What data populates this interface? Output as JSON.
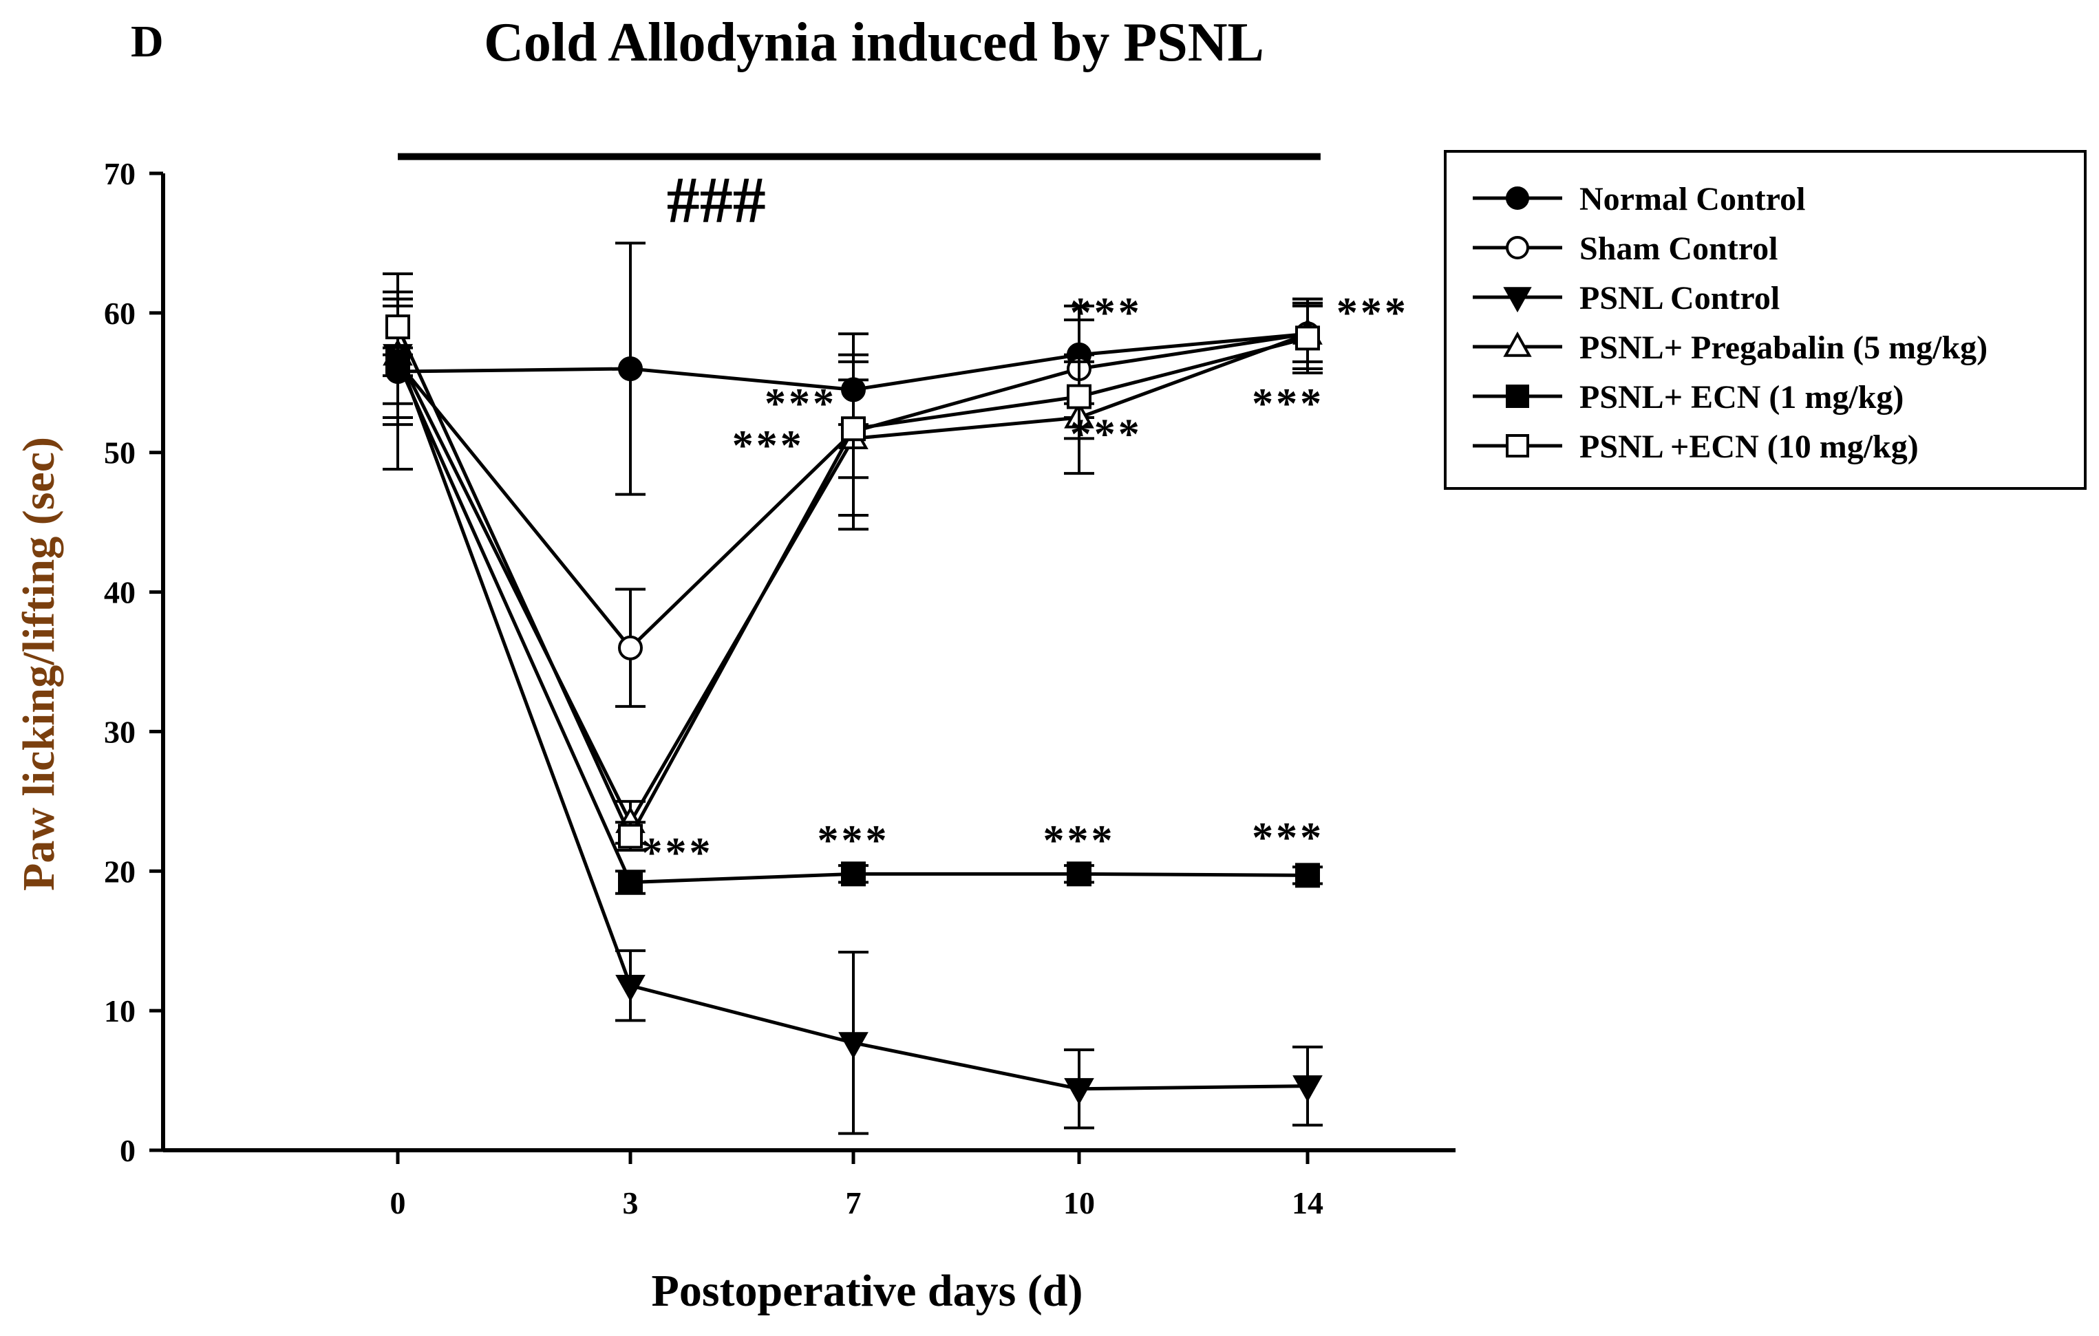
{
  "panel_label": "D",
  "chart_data": {
    "type": "line",
    "title": "Cold Allodynia induced by PSNL",
    "xlabel": "Postoperative days (d)",
    "ylabel": "Paw licking/lifting (sec)",
    "ylim": [
      0,
      70
    ],
    "yticks": [
      0,
      10,
      20,
      30,
      40,
      50,
      60,
      70
    ],
    "x": [
      0,
      3,
      7,
      10,
      14
    ],
    "x_tick_labels": [
      "0",
      "3",
      "7",
      "10",
      "14"
    ],
    "ylabel_color": "#7a3f0e",
    "series": [
      {
        "name": "Normal Control",
        "marker": "circle-filled",
        "values": [
          55.8,
          56,
          54.5,
          57,
          58.5
        ],
        "errors": [
          7,
          9,
          2.5,
          3.5,
          2.5
        ]
      },
      {
        "name": "Sham Control",
        "marker": "circle-open",
        "values": [
          56.5,
          36,
          51.5,
          56,
          58.5
        ],
        "errors": [
          4.5,
          4.2,
          7,
          3.5,
          2.5
        ]
      },
      {
        "name": "PSNL Control",
        "marker": "triangle-down-filled",
        "values": [
          57,
          11.8,
          7.7,
          4.4,
          4.6
        ],
        "errors": [
          4.5,
          2.5,
          6.5,
          2.8,
          2.8
        ]
      },
      {
        "name": "PSNL+ Pregabalin (5 mg/kg)",
        "marker": "triangle-up-open",
        "values": [
          57,
          23.5,
          51,
          52.5,
          58.5
        ],
        "errors": [
          3.5,
          1.5,
          5.5,
          4,
          2
        ]
      },
      {
        "name": "PSNL+ ECN (1 mg/kg)",
        "marker": "square-filled",
        "values": [
          56.5,
          19.2,
          19.8,
          19.8,
          19.7
        ],
        "errors": [
          1,
          0.8,
          0.6,
          0.6,
          0.6
        ]
      },
      {
        "name": "PSNL +ECN (10 mg/kg)",
        "marker": "square-open",
        "values": [
          59,
          22.5,
          51.7,
          54,
          58.2
        ],
        "errors": [
          2,
          1,
          3.5,
          3,
          2.5
        ]
      }
    ],
    "annotations": [
      {
        "text": "###",
        "kind": "hash",
        "x": 4.9,
        "y": 66.5
      },
      {
        "text": "***",
        "kind": "sig",
        "x": 10.9,
        "y": 59
      },
      {
        "text": "***",
        "kind": "sig",
        "x": 15,
        "y": 59
      },
      {
        "text": "***",
        "kind": "sig",
        "x": 6.2,
        "y": 52.5
      },
      {
        "text": "***",
        "kind": "sig",
        "x": 5.7,
        "y": 49.5
      },
      {
        "text": "***",
        "kind": "sig",
        "x": 10.9,
        "y": 50.3
      },
      {
        "text": "***",
        "kind": "sig",
        "x": 13.7,
        "y": 52.5
      },
      {
        "text": "***",
        "kind": "sig",
        "x": 4.3,
        "y": 20.3
      },
      {
        "text": "***",
        "kind": "sig",
        "x": 7,
        "y": 21.2
      },
      {
        "text": "***",
        "kind": "sig",
        "x": 10,
        "y": 21.2
      },
      {
        "text": "***",
        "kind": "sig",
        "x": 13.7,
        "y": 21.4
      }
    ],
    "significance_bar": {
      "x_start": 0,
      "x_end": 14.2,
      "y": 71.2
    }
  }
}
